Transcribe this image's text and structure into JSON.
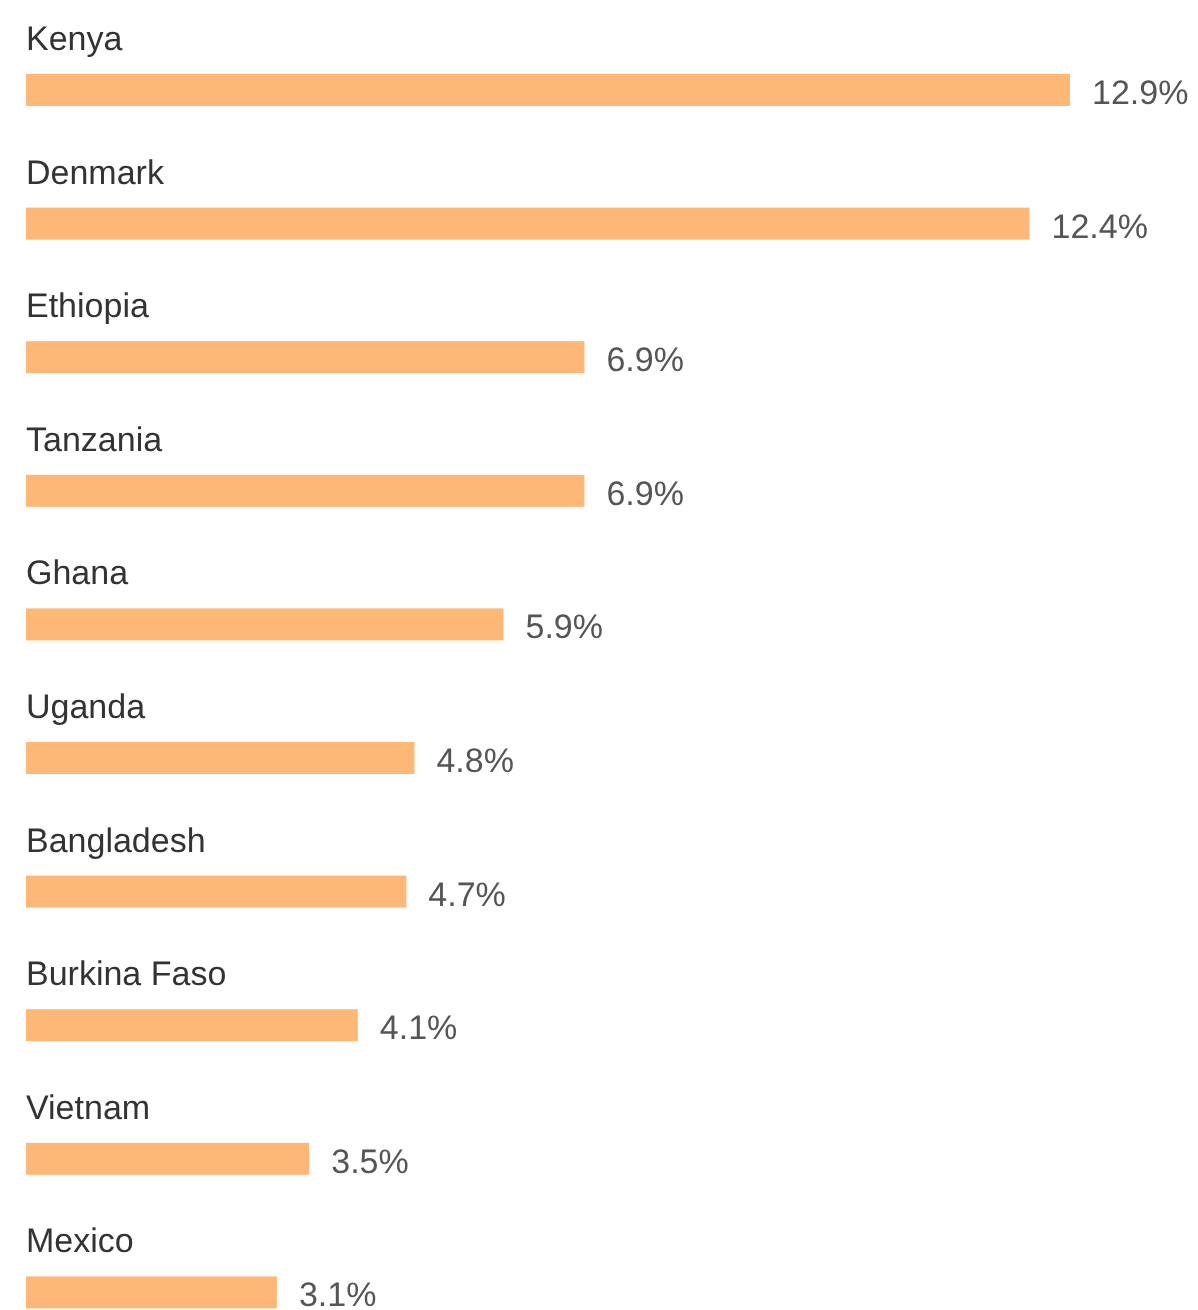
{
  "chart_data": {
    "type": "bar",
    "orientation": "horizontal",
    "categories": [
      "Kenya",
      "Denmark",
      "Ethiopia",
      "Tanzania",
      "Ghana",
      "Uganda",
      "Bangladesh",
      "Burkina Faso",
      "Vietnam",
      "Mexico"
    ],
    "values": [
      12.9,
      12.4,
      6.9,
      6.9,
      5.9,
      4.8,
      4.7,
      4.1,
      3.5,
      3.1
    ],
    "value_labels": [
      "12.9%",
      "12.4%",
      "6.9%",
      "6.9%",
      "5.9%",
      "4.8%",
      "4.7%",
      "4.1%",
      "3.5%",
      "3.1%"
    ],
    "color": "#fdb877"
  }
}
